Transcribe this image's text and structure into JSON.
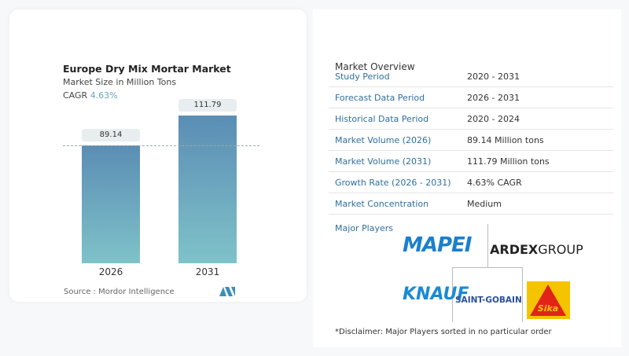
{
  "chart_data": {
    "type": "bar",
    "title": "Europe Dry Mix Mortar Market",
    "subtitle": "Market Size in Million Tons",
    "cagr_label": "CAGR",
    "cagr_value": "4.63%",
    "categories": [
      "2026",
      "2031"
    ],
    "values": [
      89.14,
      111.79
    ],
    "data_labels": [
      "89.14",
      "111.79"
    ],
    "color_gradient": [
      "#5b8db4",
      "#7fc2c9"
    ],
    "reference_line": "dashed at 2026 value",
    "grid": false
  },
  "source": "Source :  Mordor Intelligence",
  "overview": {
    "title": "Market Overview",
    "rows": [
      {
        "label": "Study Period",
        "value": "2020 - 2031"
      },
      {
        "label": "Forecast Data Period",
        "value": "2026 - 2031"
      },
      {
        "label": "Historical Data Period",
        "value": "2020 - 2024"
      },
      {
        "label": "Market Volume (2026)",
        "value": "89.14 Million tons"
      },
      {
        "label": "Market Volume (2031)",
        "value": "111.79 Million tons"
      },
      {
        "label": "Growth Rate (2026 - 2031)",
        "value": "4.63% CAGR"
      },
      {
        "label": "Market Concentration",
        "value": "Medium"
      }
    ],
    "major_players_label": "Major Players",
    "players": [
      "MAPEI",
      "ARDEX GROUP",
      "KNAUF",
      "SAINT-GOBAIN",
      "Sika"
    ],
    "disclaimer": "*Disclaimer: Major Players sorted in no particular order"
  }
}
